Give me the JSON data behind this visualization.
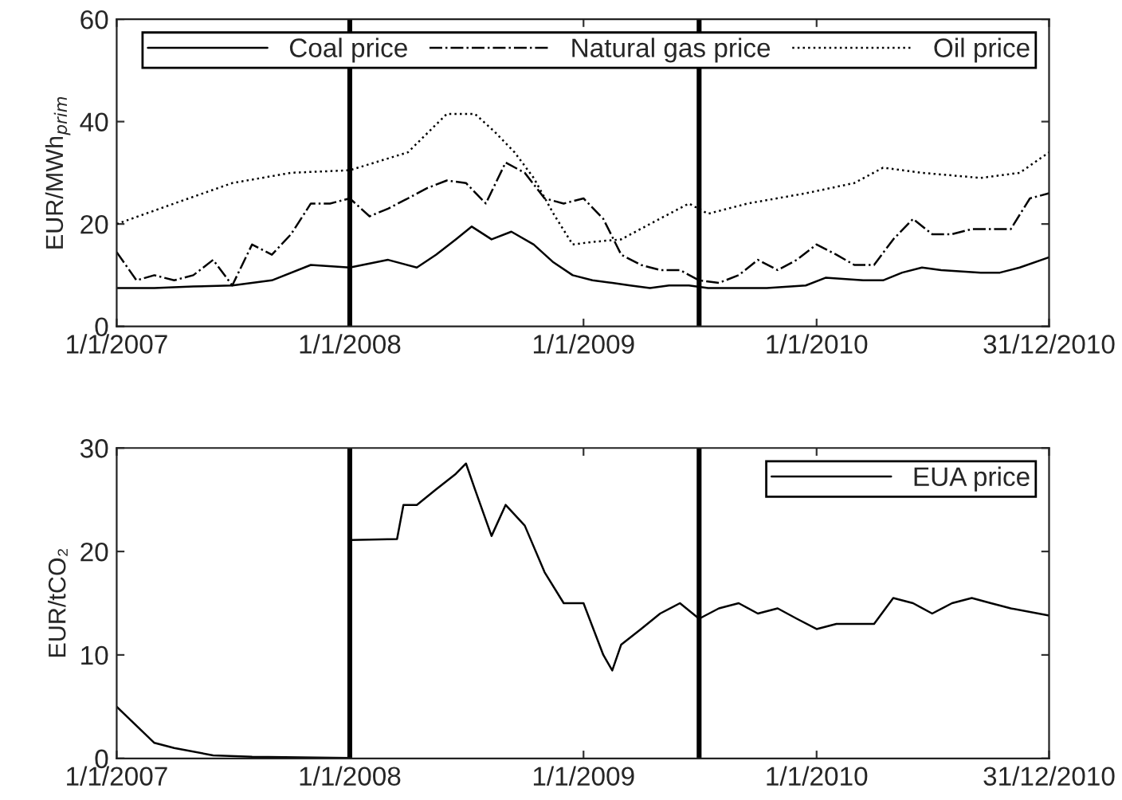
{
  "chart_data": [
    {
      "type": "line",
      "ylabel": "EUR/MWh$_{prim}$",
      "xlim": [
        "2007-01-01",
        "2010-12-31"
      ],
      "ylim": [
        0,
        60
      ],
      "yticks": [
        0,
        20,
        40,
        60
      ],
      "xticks": [
        {
          "value": "2007-01-01",
          "label": "1/1/2007"
        },
        {
          "value": "2008-01-01",
          "label": "1/1/2008"
        },
        {
          "value": "2009-01-01",
          "label": "1/1/2009"
        },
        {
          "value": "2010-01-01",
          "label": "1/1/2010"
        },
        {
          "value": "2010-12-31",
          "label": "31/12/2010"
        }
      ],
      "legend": "top right",
      "grid": false,
      "ref_lines": [
        {
          "axis": "x",
          "value": "2008-01-01",
          "color": "#000000"
        },
        {
          "axis": "x",
          "value": "2009-07-01",
          "color": "#000000"
        }
      ],
      "series": [
        {
          "name": "Coal price",
          "color": "#000000",
          "line_style": "solid",
          "x": [
            "2007-01-01",
            "2007-03-01",
            "2007-05-01",
            "2007-07-01",
            "2007-09-01",
            "2007-11-01",
            "2008-01-01",
            "2008-03-01",
            "2008-04-15",
            "2008-05-15",
            "2008-06-15",
            "2008-07-10",
            "2008-08-10",
            "2008-09-10",
            "2008-10-15",
            "2008-11-15",
            "2008-12-15",
            "2009-01-15",
            "2009-02-15",
            "2009-03-15",
            "2009-04-15",
            "2009-05-15",
            "2009-06-15",
            "2009-07-15",
            "2009-08-15",
            "2009-10-15",
            "2009-12-15",
            "2010-01-15",
            "2010-03-15",
            "2010-04-15",
            "2010-05-15",
            "2010-06-15",
            "2010-07-15",
            "2010-09-15",
            "2010-10-15",
            "2010-11-15",
            "2010-12-31"
          ],
          "values": [
            7.5,
            7.5,
            7.8,
            8,
            9,
            12,
            11.5,
            13,
            11.5,
            14,
            17,
            19.5,
            17,
            18.5,
            16,
            12.5,
            10,
            9,
            8.5,
            8,
            7.5,
            8,
            8,
            7.5,
            7.5,
            7.5,
            8,
            9.5,
            9,
            9,
            10.5,
            11.5,
            11,
            10.5,
            10.5,
            11.5,
            13.5
          ]
        },
        {
          "name": "Natural gas price",
          "color": "#000000",
          "line_style": "dashdot",
          "x": [
            "2007-01-01",
            "2007-02-01",
            "2007-03-01",
            "2007-04-01",
            "2007-05-01",
            "2007-06-01",
            "2007-07-01",
            "2007-08-01",
            "2007-09-01",
            "2007-10-01",
            "2007-11-01",
            "2007-12-01",
            "2008-01-01",
            "2008-02-01",
            "2008-03-01",
            "2008-04-01",
            "2008-05-01",
            "2008-06-01",
            "2008-07-01",
            "2008-08-01",
            "2008-09-01",
            "2008-10-01",
            "2008-11-01",
            "2008-12-01",
            "2009-01-01",
            "2009-02-01",
            "2009-03-01",
            "2009-04-01",
            "2009-05-01",
            "2009-06-01",
            "2009-07-01",
            "2009-08-01",
            "2009-09-01",
            "2009-10-01",
            "2009-11-01",
            "2009-12-01",
            "2010-01-01",
            "2010-02-01",
            "2010-03-01",
            "2010-04-01",
            "2010-05-01",
            "2010-06-01",
            "2010-07-01",
            "2010-08-01",
            "2010-09-01",
            "2010-10-01",
            "2010-11-01",
            "2010-12-01",
            "2010-12-31"
          ],
          "values": [
            14.5,
            9,
            10,
            9,
            10,
            13,
            8,
            16,
            14,
            18,
            24,
            24,
            25,
            21.5,
            23,
            25,
            27,
            28.5,
            28,
            24,
            32,
            30,
            25,
            24,
            25,
            21,
            14,
            12,
            11,
            11,
            9,
            8.5,
            10,
            13,
            11,
            13,
            16,
            14,
            12,
            12,
            17,
            21,
            18,
            18,
            19,
            19,
            19,
            25,
            26
          ]
        },
        {
          "name": "Oil price",
          "color": "#000000",
          "line_style": "dotted",
          "x": [
            "2007-01-01",
            "2007-04-01",
            "2007-07-01",
            "2007-10-01",
            "2008-01-01",
            "2008-04-01",
            "2008-06-01",
            "2008-07-15",
            "2008-08-15",
            "2008-09-15",
            "2008-10-15",
            "2008-11-15",
            "2008-12-15",
            "2009-01-15",
            "2009-03-01",
            "2009-04-15",
            "2009-06-15",
            "2009-07-15",
            "2009-09-15",
            "2009-12-15",
            "2010-03-01",
            "2010-04-15",
            "2010-06-15",
            "2010-09-15",
            "2010-11-15",
            "2010-12-31"
          ],
          "values": [
            20,
            24,
            28,
            30,
            30.5,
            34,
            41.5,
            41.5,
            38,
            34,
            29,
            22,
            16,
            16.5,
            17,
            20,
            24,
            22,
            24,
            26,
            28,
            31,
            30,
            29,
            30,
            34
          ]
        }
      ]
    },
    {
      "type": "line",
      "ylabel": "EUR/tCO₂",
      "xlim": [
        "2007-01-01",
        "2010-12-31"
      ],
      "ylim": [
        0,
        30
      ],
      "yticks": [
        0,
        10,
        20,
        30
      ],
      "xticks": [
        {
          "value": "2007-01-01",
          "label": "1/1/2007"
        },
        {
          "value": "2008-01-01",
          "label": "1/1/2008"
        },
        {
          "value": "2009-01-01",
          "label": "1/1/2009"
        },
        {
          "value": "2010-01-01",
          "label": "1/1/2010"
        },
        {
          "value": "2010-12-31",
          "label": "31/12/2010"
        }
      ],
      "legend": "top right",
      "grid": false,
      "ref_lines": [
        {
          "axis": "x",
          "value": "2008-01-01",
          "color": "#000000"
        },
        {
          "axis": "x",
          "value": "2009-07-01",
          "color": "#000000"
        }
      ],
      "series": [
        {
          "name": "EUA price",
          "color": "#000000",
          "line_style": "solid",
          "x": [
            "2007-01-01",
            "2007-03-01",
            "2007-04-01",
            "2007-06-01",
            "2007-08-01",
            "2007-12-31",
            "2008-01-01",
            "2008-03-15",
            "2008-03-25",
            "2008-04-15",
            "2008-05-15",
            "2008-06-15",
            "2008-07-01",
            "2008-07-15",
            "2008-08-10",
            "2008-09-01",
            "2008-10-01",
            "2008-11-01",
            "2008-12-01",
            "2009-01-01",
            "2009-02-01",
            "2009-02-15",
            "2009-03-01",
            "2009-04-01",
            "2009-05-01",
            "2009-06-01",
            "2009-07-01",
            "2009-08-01",
            "2009-09-01",
            "2009-10-01",
            "2009-11-01",
            "2009-12-01",
            "2010-01-01",
            "2010-02-01",
            "2010-03-01",
            "2010-04-01",
            "2010-05-01",
            "2010-06-01",
            "2010-07-01",
            "2010-08-01",
            "2010-09-01",
            "2010-10-01",
            "2010-11-01",
            "2010-12-31"
          ],
          "values": [
            5,
            1.5,
            1,
            0.3,
            0.15,
            0.05,
            21.1,
            21.2,
            24.5,
            24.5,
            26,
            27.5,
            28.5,
            26,
            21.5,
            24.5,
            22.5,
            18,
            15,
            15,
            10,
            8.5,
            11,
            12.5,
            14,
            15,
            13.5,
            14.5,
            15,
            14,
            14.5,
            13.5,
            12.5,
            13,
            13,
            13,
            15.5,
            15,
            14,
            15,
            15.5,
            15,
            14.5,
            13.8
          ]
        }
      ]
    }
  ]
}
